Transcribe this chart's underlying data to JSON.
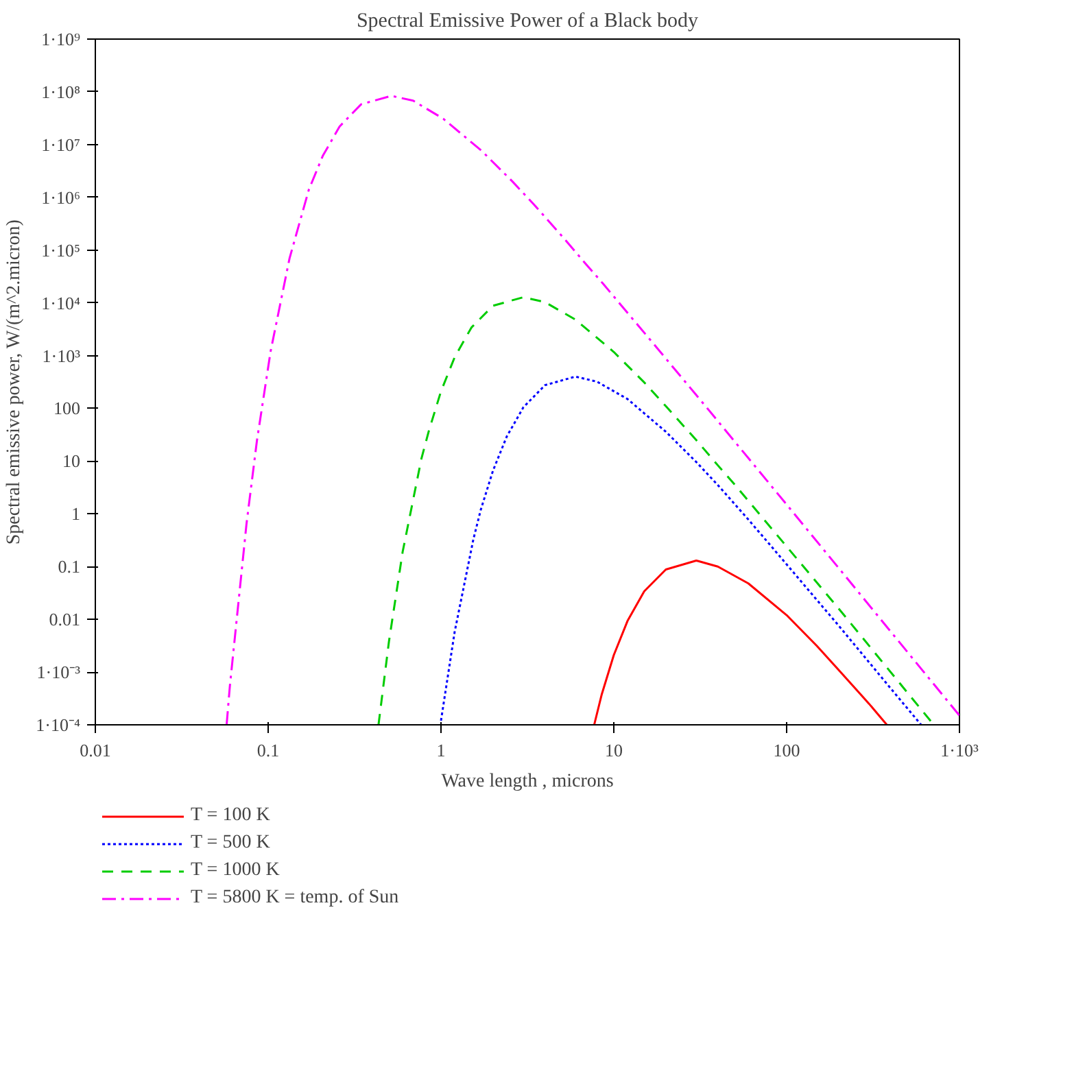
{
  "chart_data": {
    "type": "line",
    "title": "Spectral Emissive Power of a Black body",
    "xlabel": "Wave length , microns",
    "ylabel": "Spectral emissive power, W/(m^2.micron)",
    "log": "xy",
    "grid": false,
    "legend": "bottom",
    "marker": "none",
    "xlim": [
      0.01,
      1000
    ],
    "ylim": [
      0.0001,
      1000000000
    ],
    "xticks": [
      0.01,
      0.1,
      1,
      10,
      100,
      {
        "value": 1000,
        "label": "1·10³"
      }
    ],
    "yticks": [
      {
        "value": 0.0001,
        "label": "1·10⁻⁴"
      },
      {
        "value": 0.001,
        "label": "1·10⁻³"
      },
      0.01,
      0.1,
      1,
      10,
      100,
      {
        "value": 1000,
        "label": "1·10³"
      },
      {
        "value": 10000,
        "label": "1·10⁴"
      },
      {
        "value": 100000,
        "label": "1·10⁵"
      },
      {
        "value": 1000000,
        "label": "1·10⁶"
      },
      {
        "value": 10000000,
        "label": "1·10⁷"
      },
      {
        "value": 100000000,
        "label": "1·10⁸"
      },
      {
        "value": 1000000000,
        "label": "1·10⁹"
      }
    ],
    "series": [
      {
        "name": "T = 100 K",
        "color": "#ff0000",
        "line_style": "solid",
        "x": [
          7.7,
          8.5,
          10,
          12,
          15,
          20,
          30,
          40,
          60,
          100,
          150,
          200,
          300,
          380
        ],
        "values": [
          0.0001,
          0.00037,
          0.0021,
          0.0093,
          0.034,
          0.088,
          0.13,
          0.1,
          0.048,
          0.012,
          0.0031,
          0.0011,
          0.00025,
          0.0001
        ]
      },
      {
        "name": "T = 500 K",
        "color": "#0000ff",
        "line_style": "dotted",
        "x": [
          1,
          1.2,
          1.54,
          1.7,
          2,
          2.4,
          3,
          4,
          6,
          8,
          12,
          20,
          30,
          40,
          60,
          80,
          100,
          200,
          400,
          600
        ],
        "values": [
          0.00012,
          0.0058,
          0.33,
          1.2,
          6.6,
          29,
          105,
          275,
          400,
          320,
          150,
          36,
          9.6,
          3.5,
          0.78,
          0.26,
          0.11,
          0.0076,
          0.00049,
          0.0001
        ]
      },
      {
        "name": "T = 1000 K",
        "color": "#00cc00",
        "line_style": "dashed",
        "x": [
          0.435,
          0.5,
          0.6,
          0.77,
          0.85,
          1,
          1.2,
          1.5,
          2,
          3,
          4,
          6,
          10,
          15,
          20,
          30,
          40,
          50,
          100,
          200,
          710
        ],
        "values": [
          0.0001,
          0.0038,
          0.19,
          11,
          37,
          210,
          930,
          3400,
          8800,
          12800,
          10300,
          4800,
          1170,
          310,
          110,
          25,
          8.3,
          3.6,
          0.24,
          0.016,
          0.0001
        ]
      },
      {
        "name": "T = 5800 K = temp. of Sun",
        "color": "#ff00ff",
        "line_style": "dashdot",
        "x": [
          0.0575,
          0.06,
          0.075,
          0.0862,
          0.1034,
          0.133,
          0.172,
          0.207,
          0.259,
          0.345,
          0.517,
          0.69,
          1.03,
          1.72,
          2.59,
          3.45,
          5.17,
          6.9,
          8.62,
          17.2,
          34.5,
          100,
          200,
          500,
          1000
        ],
        "values": [
          0.0001,
          0.00053,
          0.66,
          25,
          1220,
          70000,
          1400000,
          6100000,
          22000000,
          58000000,
          84000000,
          68000000,
          31000000,
          7600000,
          2000000,
          730000,
          164000,
          54000,
          23500,
          1590,
          103,
          1.5,
          0.094,
          0.0024,
          0.00015
        ]
      }
    ]
  }
}
